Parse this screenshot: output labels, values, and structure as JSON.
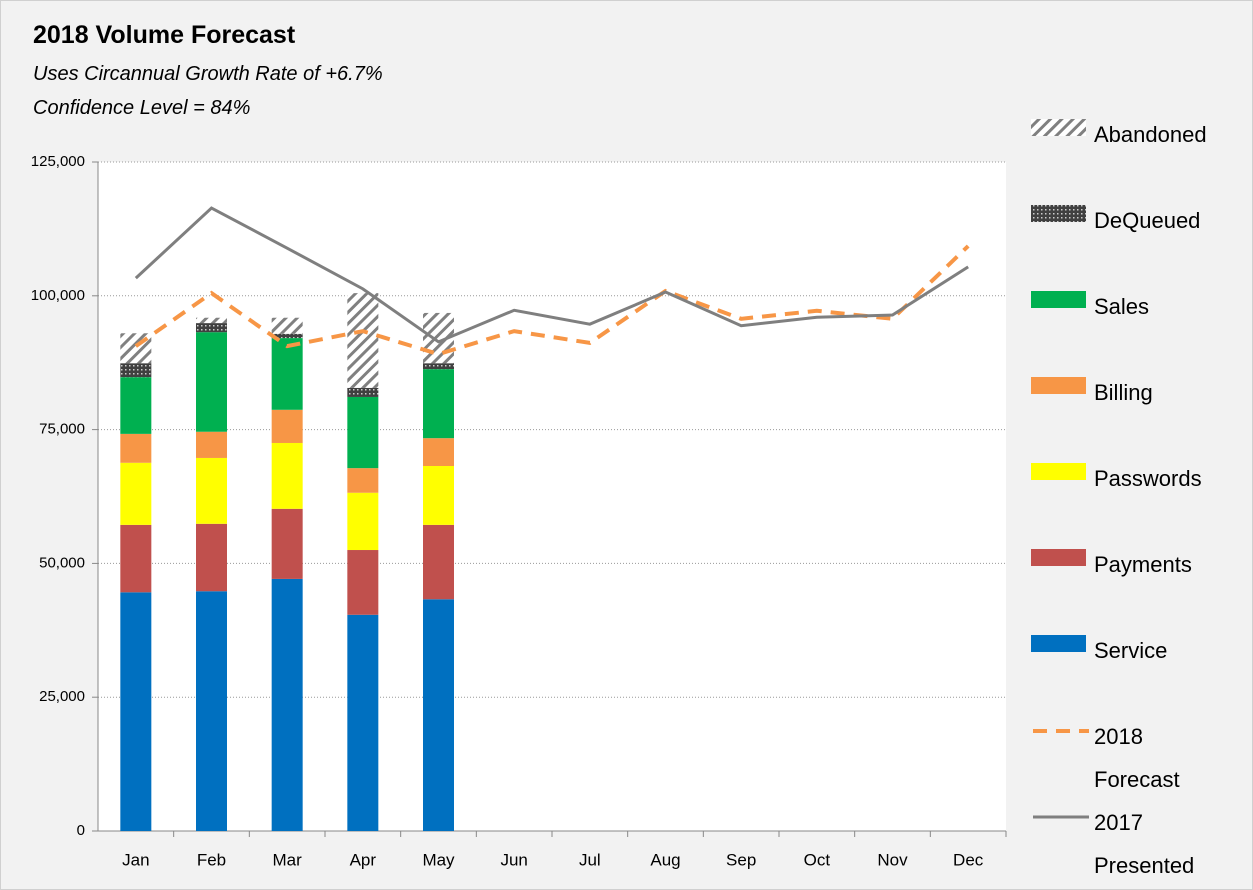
{
  "chart_data": {
    "type": "bar",
    "title": "2018 Volume Forecast",
    "subtitle": "Uses Circannual Growth Rate of +6.7%",
    "annotation": "Confidence Level =   84%",
    "categories": [
      "Jan",
      "Feb",
      "Mar",
      "Apr",
      "May",
      "Jun",
      "Jul",
      "Aug",
      "Sep",
      "Oct",
      "Nov",
      "Dec"
    ],
    "series": [
      {
        "name": "Service",
        "type": "bar",
        "color": "#0070c0",
        "values": [
          44600,
          44800,
          47100,
          40400,
          43300,
          null,
          null,
          null,
          null,
          null,
          null,
          null
        ]
      },
      {
        "name": "Payments",
        "type": "bar",
        "color": "#c0504d",
        "values": [
          12600,
          12600,
          13100,
          12100,
          13900,
          null,
          null,
          null,
          null,
          null,
          null,
          null
        ]
      },
      {
        "name": "Passwords",
        "type": "bar",
        "color": "#ffff00",
        "values": [
          11600,
          12300,
          12300,
          10700,
          11000,
          null,
          null,
          null,
          null,
          null,
          null,
          null
        ]
      },
      {
        "name": "Billing",
        "type": "bar",
        "color": "#f79646",
        "values": [
          5400,
          4900,
          6200,
          4600,
          5200,
          null,
          null,
          null,
          null,
          null,
          null,
          null
        ]
      },
      {
        "name": "Sales",
        "type": "bar",
        "color": "#00b050",
        "values": [
          10600,
          18600,
          13400,
          13300,
          12900,
          null,
          null,
          null,
          null,
          null,
          null,
          null
        ]
      },
      {
        "name": "DeQueued",
        "type": "bar",
        "color": "#404040",
        "pattern": "dots",
        "values": [
          2600,
          1700,
          800,
          1700,
          1100,
          null,
          null,
          null,
          null,
          null,
          null,
          null
        ]
      },
      {
        "name": "Abandoned",
        "type": "bar",
        "color": "#808080",
        "pattern": "hatch",
        "values": [
          5600,
          1000,
          3000,
          17700,
          9400,
          null,
          null,
          null,
          null,
          null,
          null,
          null
        ]
      },
      {
        "name": "2018 Forecast",
        "type": "line",
        "color": "#f79646",
        "dashed": true,
        "values": [
          90600,
          100500,
          90600,
          93400,
          89100,
          93400,
          91200,
          100900,
          95700,
          97200,
          95700,
          109300
        ]
      },
      {
        "name": "2017 Presented",
        "type": "line",
        "color": "#7f7f7f",
        "dashed": false,
        "values": [
          103300,
          116400,
          108900,
          101300,
          91400,
          97300,
          94700,
          100700,
          94400,
          96000,
          96400,
          105400
        ]
      }
    ],
    "ylim": [
      0,
      125000
    ],
    "yticks": [
      0,
      {
        "value": 25000,
        "label": "25,000"
      },
      {
        "value": 50000,
        "label": "50,000"
      },
      {
        "value": 75000,
        "label": "75,000"
      },
      {
        "value": 100000,
        "label": "100,000"
      },
      {
        "value": 125000,
        "label": "125,000"
      }
    ],
    "grid": true,
    "legend": "right"
  }
}
